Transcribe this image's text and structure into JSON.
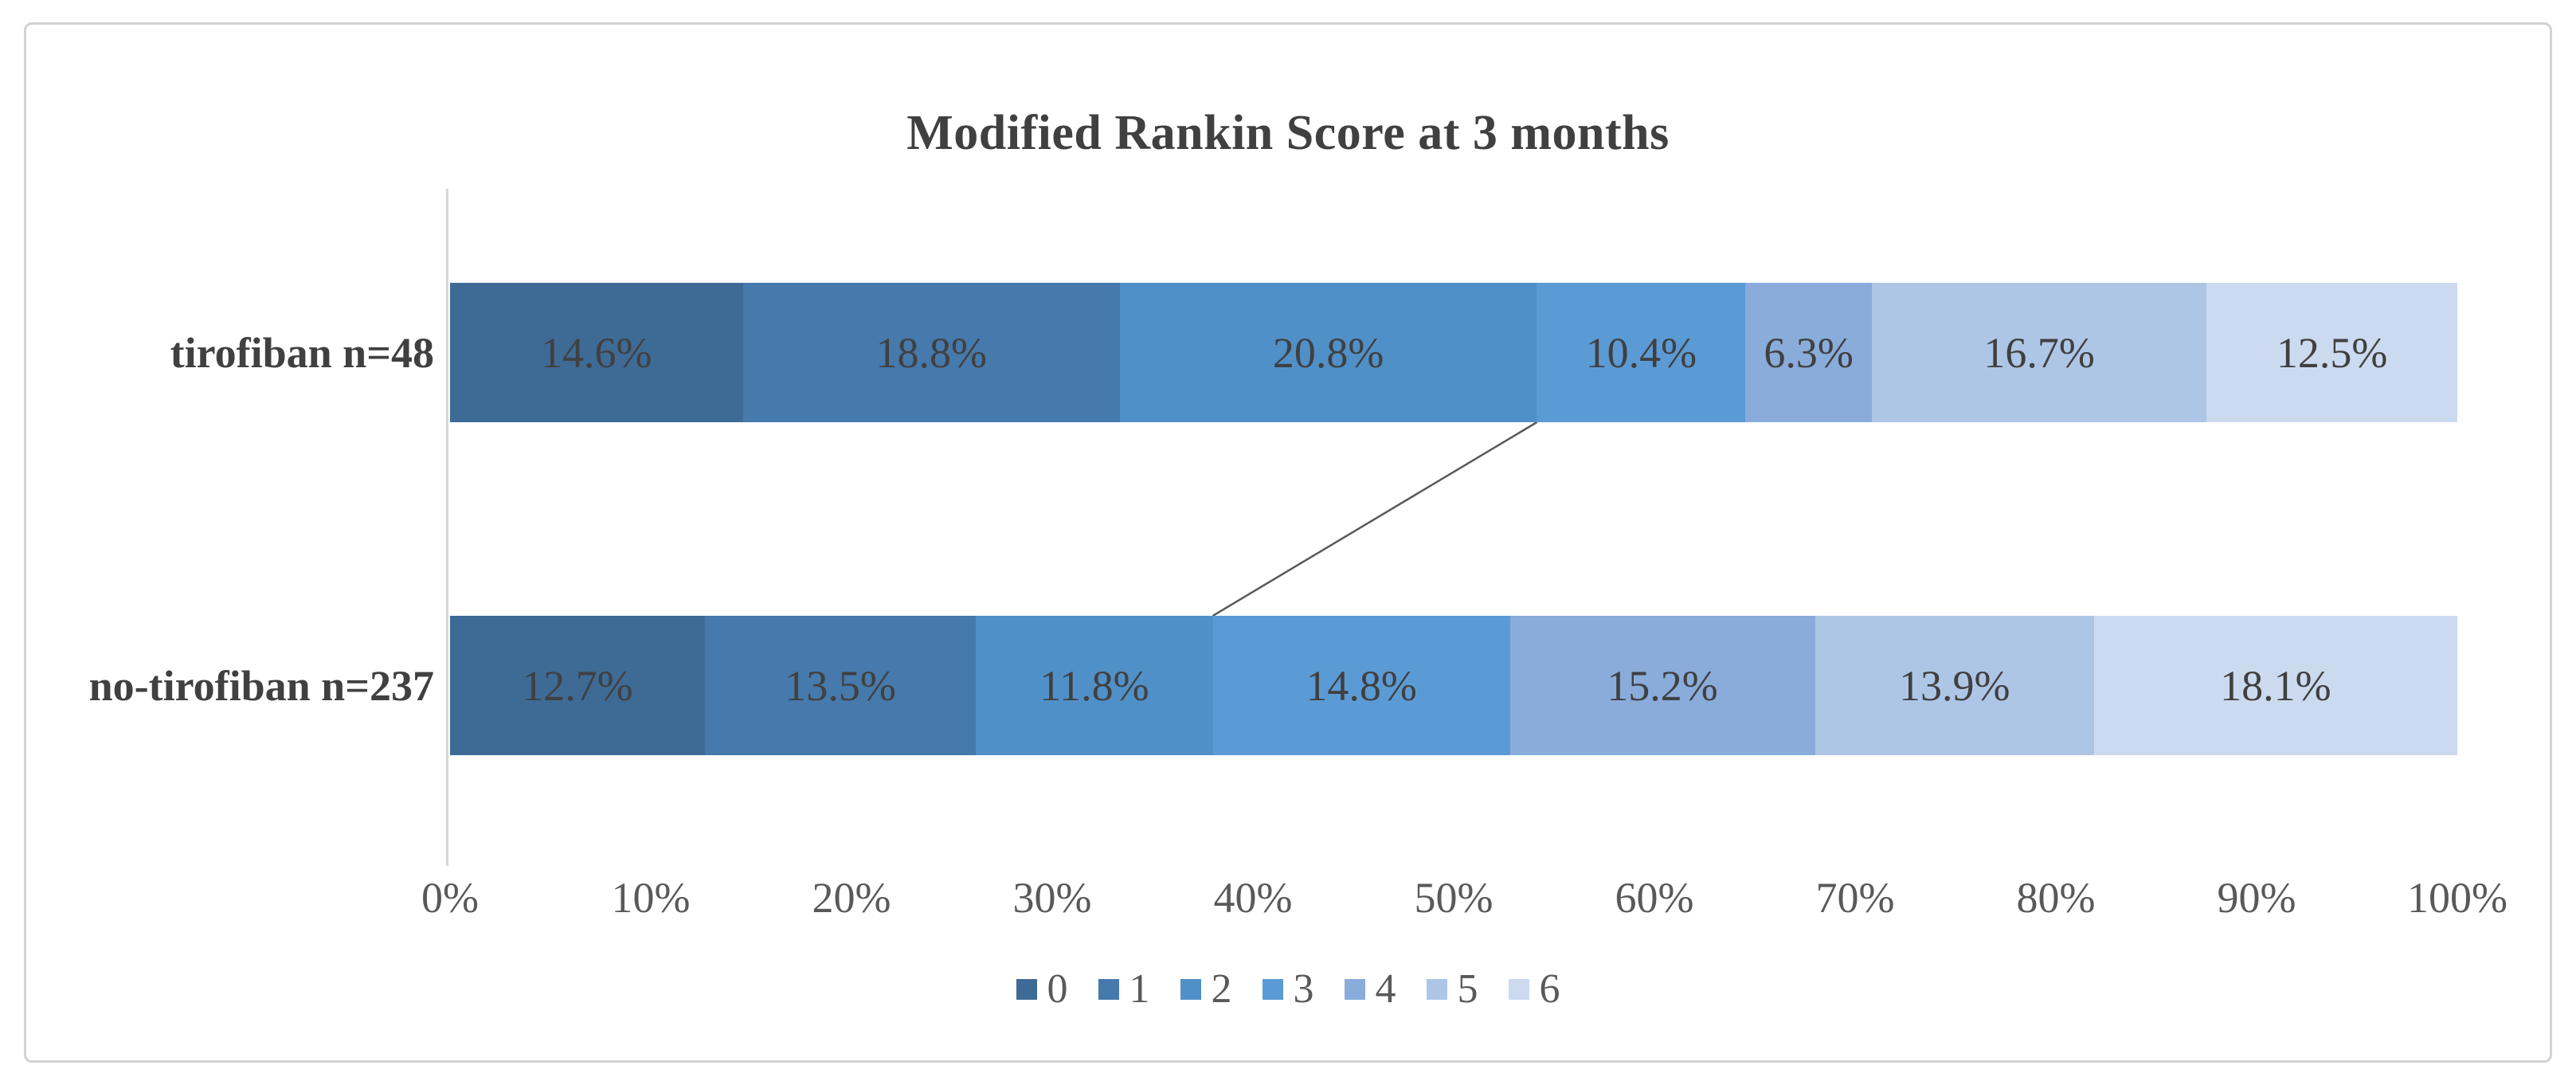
{
  "chart_data": {
    "type": "bar",
    "stacked": true,
    "orientation": "horizontal",
    "title": "Modified Rankin Score at 3 months",
    "categories": [
      "tirofiban n=48",
      "no-tirofiban n=237"
    ],
    "series": [
      {
        "name": "0",
        "color": "#3E6B96",
        "values": [
          14.6,
          12.7
        ]
      },
      {
        "name": "1",
        "color": "#4679AC",
        "values": [
          18.8,
          13.5
        ]
      },
      {
        "name": "2",
        "color": "#5090C8",
        "values": [
          20.8,
          11.8
        ]
      },
      {
        "name": "3",
        "color": "#5B9BD5",
        "values": [
          10.4,
          14.8
        ]
      },
      {
        "name": "4",
        "color": "#89ACDB",
        "values": [
          6.3,
          15.2
        ]
      },
      {
        "name": "5",
        "color": "#AEC6E6",
        "values": [
          16.7,
          13.9
        ]
      },
      {
        "name": "6",
        "color": "#CBDAEF",
        "values": [
          12.5,
          18.1
        ]
      }
    ],
    "value_suffix": "%",
    "x_ticks": [
      "0%",
      "10%",
      "20%",
      "30%",
      "40%",
      "50%",
      "60%",
      "70%",
      "80%",
      "90%",
      "100%"
    ],
    "xlim": [
      0,
      100
    ],
    "gridlines": false,
    "legend_position": "bottom",
    "legend_entries": [
      "0",
      "1",
      "2",
      "3",
      "4",
      "5",
      "6"
    ],
    "connector_line": {
      "after_series_index": 2,
      "description": "diagonal line joining the cumulative boundary after score 2 between the two bars"
    },
    "text_color": "#404040",
    "axis_text_color": "#595959",
    "frame_color": "#d2d2d2"
  }
}
